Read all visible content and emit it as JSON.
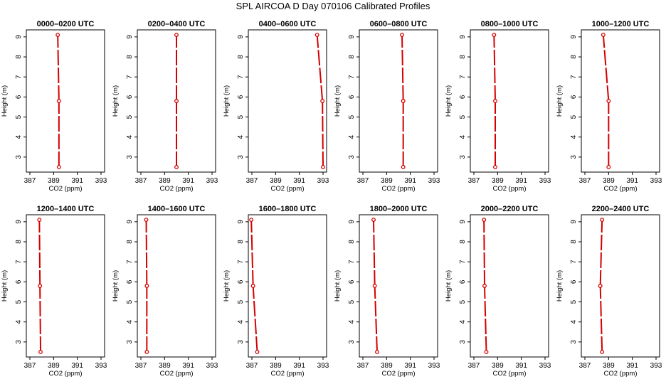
{
  "title": "SPL AIRCOA D  Day 070106  Calibrated Profiles",
  "colors": {
    "profile": "#d40000",
    "axis": "#000000",
    "background": "#ffffff"
  },
  "chart_data": [
    {
      "type": "line",
      "title": "0000–0200 UTC",
      "xlabel": "CO2 (ppm)",
      "ylabel": "Height (m)",
      "xlim": [
        386.7,
        393.3
      ],
      "ylim": [
        2.25,
        9.35
      ],
      "xticks": [
        387,
        389,
        391,
        393
      ],
      "yticks": [
        3,
        4,
        5,
        6,
        7,
        8,
        9
      ],
      "points": [
        {
          "x": 389.45,
          "y": 2.5
        },
        {
          "x": 389.45,
          "y": 5.8
        },
        {
          "x": 389.35,
          "y": 9.1
        }
      ]
    },
    {
      "type": "line",
      "title": "0200–0400 UTC",
      "xlabel": "CO2 (ppm)",
      "ylabel": "Height (m)",
      "xlim": [
        386.7,
        393.3
      ],
      "ylim": [
        2.25,
        9.35
      ],
      "xticks": [
        387,
        389,
        391,
        393
      ],
      "yticks": [
        3,
        4,
        5,
        6,
        7,
        8,
        9
      ],
      "points": [
        {
          "x": 390.0,
          "y": 2.5
        },
        {
          "x": 390.0,
          "y": 5.8
        },
        {
          "x": 390.0,
          "y": 9.1
        }
      ]
    },
    {
      "type": "line",
      "title": "0400–0600 UTC",
      "xlabel": "CO2 (ppm)",
      "ylabel": "Height (m)",
      "xlim": [
        386.7,
        393.3
      ],
      "ylim": [
        2.25,
        9.35
      ],
      "xticks": [
        387,
        389,
        391,
        393
      ],
      "yticks": [
        3,
        4,
        5,
        6,
        7,
        8,
        9
      ],
      "points": [
        {
          "x": 393.0,
          "y": 2.5
        },
        {
          "x": 392.95,
          "y": 5.8
        },
        {
          "x": 392.5,
          "y": 9.1
        }
      ]
    },
    {
      "type": "line",
      "title": "0600–0800 UTC",
      "xlabel": "CO2 (ppm)",
      "ylabel": "Height (m)",
      "xlim": [
        386.7,
        393.3
      ],
      "ylim": [
        2.25,
        9.35
      ],
      "xticks": [
        387,
        389,
        391,
        393
      ],
      "yticks": [
        3,
        4,
        5,
        6,
        7,
        8,
        9
      ],
      "points": [
        {
          "x": 390.4,
          "y": 2.5
        },
        {
          "x": 390.4,
          "y": 5.8
        },
        {
          "x": 390.3,
          "y": 9.1
        }
      ]
    },
    {
      "type": "line",
      "title": "0800–1000 UTC",
      "xlabel": "CO2 (ppm)",
      "ylabel": "Height (m)",
      "xlim": [
        386.7,
        393.3
      ],
      "ylim": [
        2.25,
        9.35
      ],
      "xticks": [
        387,
        389,
        391,
        393
      ],
      "yticks": [
        3,
        4,
        5,
        6,
        7,
        8,
        9
      ],
      "points": [
        {
          "x": 388.8,
          "y": 2.5
        },
        {
          "x": 388.8,
          "y": 5.8
        },
        {
          "x": 388.7,
          "y": 9.1
        }
      ]
    },
    {
      "type": "line",
      "title": "1000–1200 UTC",
      "xlabel": "CO2 (ppm)",
      "ylabel": "Height (m)",
      "xlim": [
        386.7,
        393.3
      ],
      "ylim": [
        2.25,
        9.35
      ],
      "xticks": [
        387,
        389,
        391,
        393
      ],
      "yticks": [
        3,
        4,
        5,
        6,
        7,
        8,
        9
      ],
      "points": [
        {
          "x": 389.0,
          "y": 2.5
        },
        {
          "x": 389.0,
          "y": 5.8
        },
        {
          "x": 388.55,
          "y": 9.1
        }
      ]
    },
    {
      "type": "line",
      "title": "1200–1400 UTC",
      "xlabel": "CO2 (ppm)",
      "ylabel": "Height (m)",
      "xlim": [
        386.7,
        393.3
      ],
      "ylim": [
        2.25,
        9.35
      ],
      "xticks": [
        387,
        389,
        391,
        393
      ],
      "yticks": [
        3,
        4,
        5,
        6,
        7,
        8,
        9
      ],
      "points": [
        {
          "x": 387.9,
          "y": 2.5
        },
        {
          "x": 387.85,
          "y": 5.8
        },
        {
          "x": 387.8,
          "y": 9.1
        }
      ]
    },
    {
      "type": "line",
      "title": "1400–1600 UTC",
      "xlabel": "CO2 (ppm)",
      "ylabel": "Height (m)",
      "xlim": [
        386.7,
        393.3
      ],
      "ylim": [
        2.25,
        9.35
      ],
      "xticks": [
        387,
        389,
        391,
        393
      ],
      "yticks": [
        3,
        4,
        5,
        6,
        7,
        8,
        9
      ],
      "points": [
        {
          "x": 387.5,
          "y": 2.5
        },
        {
          "x": 387.5,
          "y": 5.8
        },
        {
          "x": 387.45,
          "y": 9.1
        }
      ]
    },
    {
      "type": "line",
      "title": "1600–1800 UTC",
      "xlabel": "CO2 (ppm)",
      "ylabel": "Height (m)",
      "xlim": [
        386.7,
        393.3
      ],
      "ylim": [
        2.25,
        9.35
      ],
      "xticks": [
        387,
        389,
        391,
        393
      ],
      "yticks": [
        3,
        4,
        5,
        6,
        7,
        8,
        9
      ],
      "points": [
        {
          "x": 387.45,
          "y": 2.5
        },
        {
          "x": 387.1,
          "y": 5.8
        },
        {
          "x": 386.95,
          "y": 9.1
        }
      ]
    },
    {
      "type": "line",
      "title": "1800–2000 UTC",
      "xlabel": "CO2 (ppm)",
      "ylabel": "Height (m)",
      "xlim": [
        386.7,
        393.3
      ],
      "ylim": [
        2.25,
        9.35
      ],
      "xticks": [
        387,
        389,
        391,
        393
      ],
      "yticks": [
        3,
        4,
        5,
        6,
        7,
        8,
        9
      ],
      "points": [
        {
          "x": 388.2,
          "y": 2.5
        },
        {
          "x": 388.0,
          "y": 5.8
        },
        {
          "x": 387.9,
          "y": 9.1
        }
      ]
    },
    {
      "type": "line",
      "title": "2000–2200 UTC",
      "xlabel": "CO2 (ppm)",
      "ylabel": "Height (m)",
      "xlim": [
        386.7,
        393.3
      ],
      "ylim": [
        2.25,
        9.35
      ],
      "xticks": [
        387,
        389,
        391,
        393
      ],
      "yticks": [
        3,
        4,
        5,
        6,
        7,
        8,
        9
      ],
      "points": [
        {
          "x": 388.05,
          "y": 2.5
        },
        {
          "x": 387.9,
          "y": 5.8
        },
        {
          "x": 387.85,
          "y": 9.1
        }
      ]
    },
    {
      "type": "line",
      "title": "2200–2400 UTC",
      "xlabel": "CO2 (ppm)",
      "ylabel": "Height (m)",
      "xlim": [
        386.7,
        393.3
      ],
      "ylim": [
        2.25,
        9.35
      ],
      "xticks": [
        387,
        389,
        391,
        393
      ],
      "yticks": [
        3,
        4,
        5,
        6,
        7,
        8,
        9
      ],
      "points": [
        {
          "x": 388.45,
          "y": 2.5
        },
        {
          "x": 388.3,
          "y": 5.8
        },
        {
          "x": 388.45,
          "y": 9.1
        }
      ]
    }
  ]
}
